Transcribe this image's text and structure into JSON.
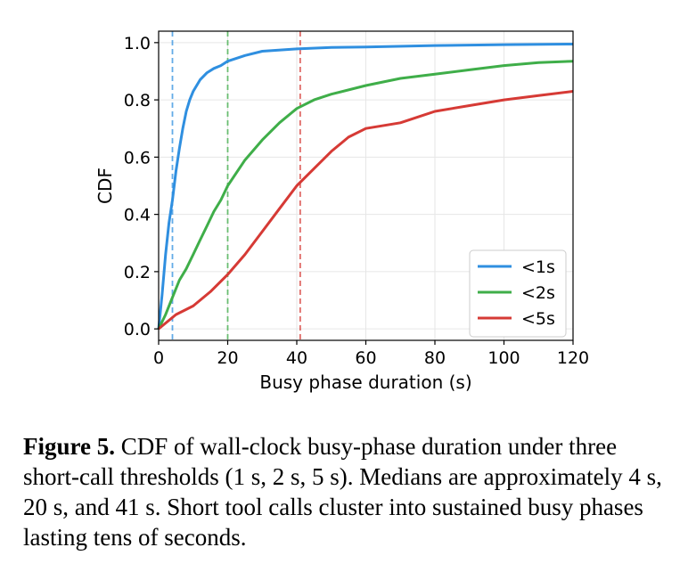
{
  "chart_data": {
    "type": "line",
    "title": "",
    "xlabel": "Busy phase duration (s)",
    "ylabel": "CDF",
    "xlim": [
      0,
      120
    ],
    "ylim": [
      -0.04,
      1.04
    ],
    "xticks": [
      0,
      20,
      40,
      60,
      80,
      100,
      120
    ],
    "xtick_labels": [
      "0",
      "20",
      "40",
      "60",
      "80",
      "100",
      "120"
    ],
    "yticks": [
      0.0,
      0.2,
      0.4,
      0.6,
      0.8,
      1.0
    ],
    "ytick_labels": [
      "0.0",
      "0.2",
      "0.4",
      "0.6",
      "0.8",
      "1.0"
    ],
    "grid": true,
    "legend_position": "lower-right",
    "series": [
      {
        "name": "<1s",
        "color": "#2f8fe0",
        "median": 4,
        "x": [
          0,
          1,
          2,
          3,
          4,
          5,
          6,
          7,
          8,
          9,
          10,
          12,
          14,
          16,
          18,
          20,
          25,
          30,
          40,
          50,
          60,
          80,
          100,
          120
        ],
        "y": [
          0.0,
          0.12,
          0.26,
          0.37,
          0.45,
          0.55,
          0.63,
          0.7,
          0.76,
          0.8,
          0.83,
          0.87,
          0.895,
          0.91,
          0.92,
          0.935,
          0.955,
          0.97,
          0.978,
          0.983,
          0.985,
          0.99,
          0.993,
          0.995
        ]
      },
      {
        "name": "<2s",
        "color": "#3fae49",
        "median": 20,
        "x": [
          0,
          2,
          4,
          6,
          8,
          10,
          12,
          14,
          16,
          18,
          20,
          25,
          30,
          35,
          40,
          45,
          50,
          60,
          70,
          80,
          90,
          100,
          110,
          120
        ],
        "y": [
          0.0,
          0.05,
          0.11,
          0.17,
          0.21,
          0.26,
          0.31,
          0.36,
          0.41,
          0.45,
          0.5,
          0.59,
          0.66,
          0.72,
          0.77,
          0.8,
          0.82,
          0.85,
          0.875,
          0.89,
          0.905,
          0.92,
          0.93,
          0.935
        ]
      },
      {
        "name": "<5s",
        "color": "#d63a35",
        "median": 41,
        "x": [
          0,
          5,
          10,
          15,
          20,
          25,
          30,
          35,
          40,
          45,
          50,
          55,
          60,
          70,
          80,
          90,
          100,
          110,
          120
        ],
        "y": [
          0.0,
          0.05,
          0.08,
          0.13,
          0.19,
          0.26,
          0.34,
          0.42,
          0.5,
          0.56,
          0.62,
          0.67,
          0.7,
          0.72,
          0.76,
          0.78,
          0.8,
          0.815,
          0.83
        ]
      }
    ]
  },
  "caption": {
    "label": "Figure 5.",
    "text": " CDF of wall-clock busy-phase duration under three short-call thresholds (1 s, 2 s, 5 s). Medians are approximately 4 s, 20 s, and 41 s. Short tool calls cluster into sustained busy phases lasting tens of seconds."
  }
}
